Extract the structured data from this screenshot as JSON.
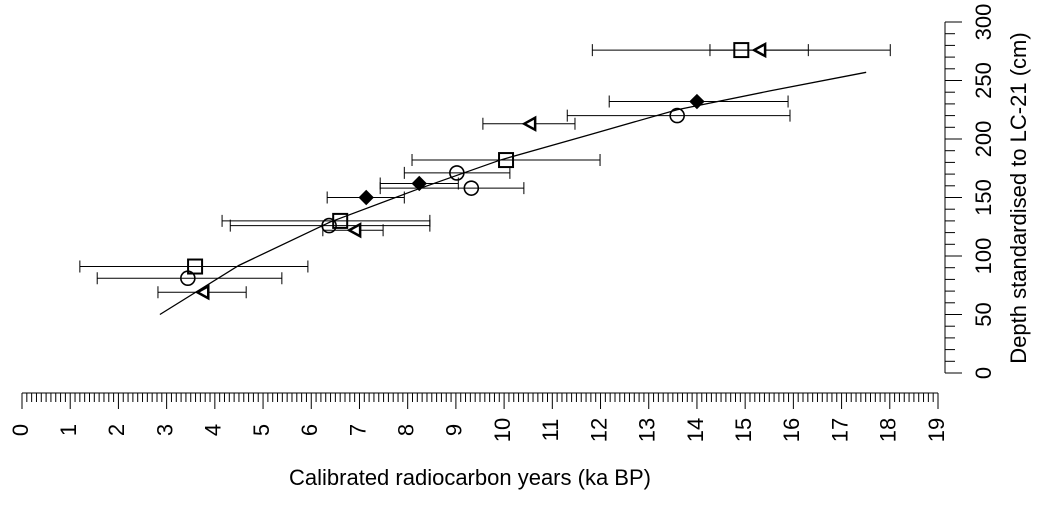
{
  "chart_data": {
    "type": "scatter",
    "xlabel": "Calibrated radiocarbon years (ka BP)",
    "ylabel": "Depth standardised to LC-21 (cm)",
    "xlim": [
      0,
      19
    ],
    "ylim": [
      0,
      300
    ],
    "xticks": [
      0,
      1,
      2,
      3,
      4,
      5,
      6,
      7,
      8,
      9,
      10,
      11,
      12,
      13,
      14,
      15,
      16,
      17,
      18,
      19
    ],
    "yticks": [
      0,
      50,
      100,
      150,
      200,
      250,
      300
    ],
    "color": "#000000",
    "series": [
      {
        "marker": "square",
        "x": [
          14.92,
          10.04,
          6.6,
          3.59
        ],
        "y": [
          276,
          182,
          130,
          91
        ],
        "xlow": [
          11.83,
          8.09,
          4.15,
          1.2
        ],
        "xhigh": [
          16.31,
          11.99,
          8.46,
          5.93
        ]
      },
      {
        "marker": "circle",
        "x": [
          13.59,
          9.02,
          9.32,
          6.37,
          3.44
        ],
        "y": [
          220,
          171,
          158,
          126,
          81
        ],
        "xlow": [
          11.31,
          7.93,
          7.43,
          4.32,
          1.56
        ],
        "xhigh": [
          15.93,
          10.12,
          10.41,
          8.46,
          5.39
        ]
      },
      {
        "marker": "triangle",
        "x": [
          15.31,
          10.54,
          6.91,
          3.76
        ],
        "y": [
          276,
          213,
          122,
          69
        ],
        "xlow": [
          14.27,
          9.56,
          6.24,
          2.82
        ],
        "xhigh": [
          18.01,
          11.47,
          7.49,
          4.65
        ]
      },
      {
        "marker": "diamond",
        "x": [
          14.0,
          8.24,
          7.14
        ],
        "y": [
          232,
          162,
          150
        ],
        "xlow": [
          12.18,
          7.43,
          6.33
        ],
        "xhigh": [
          15.89,
          9.05,
          7.93
        ]
      }
    ],
    "fit": {
      "x": [
        2.86,
        4.5,
        6.39,
        8.2,
        9.92,
        11.8,
        13.59,
        15.5,
        17.51
      ],
      "y": [
        50,
        92,
        129,
        157,
        182,
        204,
        225,
        241,
        257
      ]
    }
  }
}
